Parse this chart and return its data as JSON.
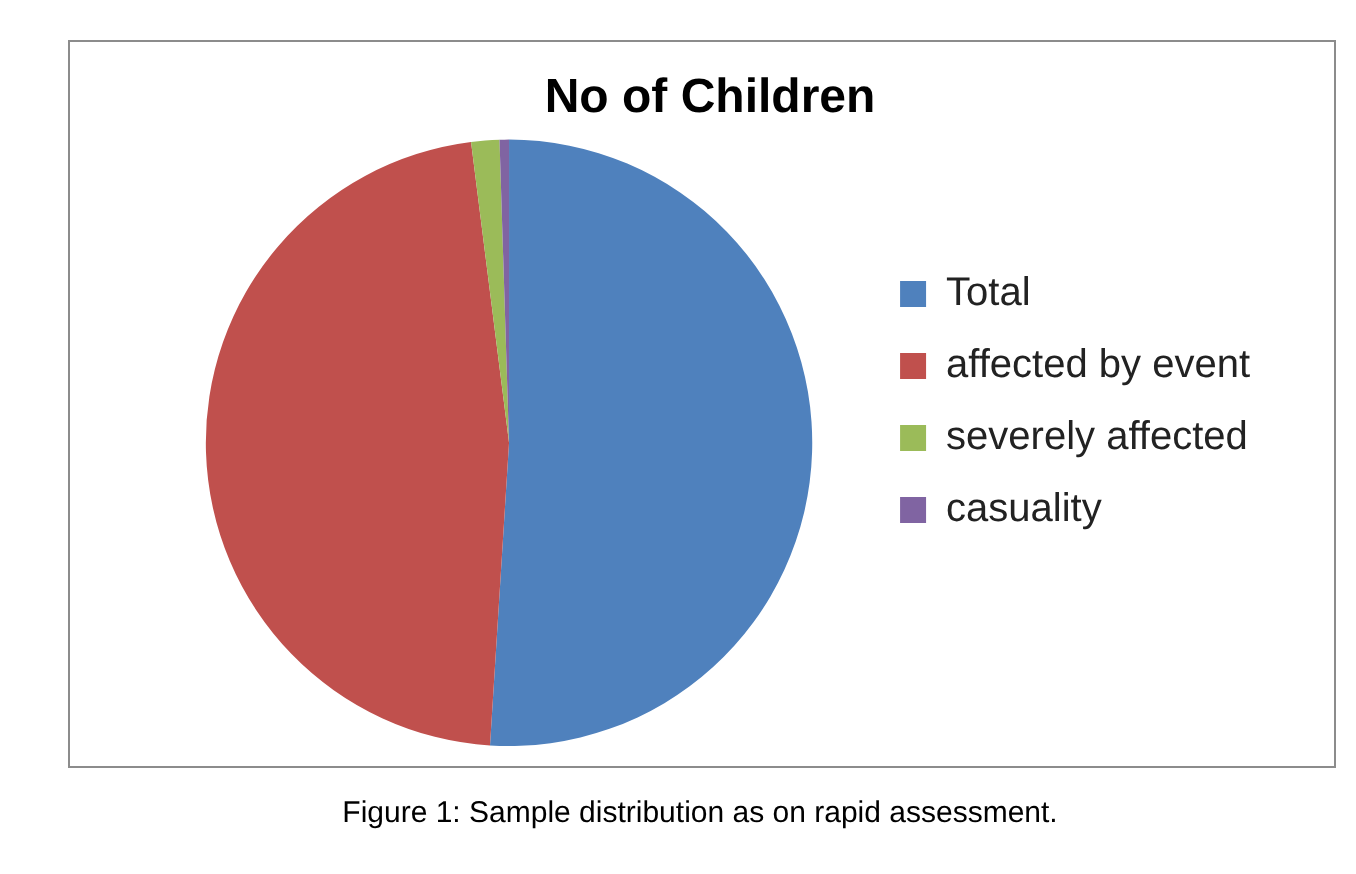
{
  "chart_data": {
    "type": "pie",
    "title": "No of Children",
    "categories": [
      "Total",
      "affected by event",
      "severely affected",
      "casuality"
    ],
    "values": [
      51,
      47,
      1.5,
      0.5
    ],
    "colors": [
      "#4f81bd",
      "#c0504d",
      "#9bbb59",
      "#8064a2"
    ],
    "legend": "right",
    "annotations": [
      "Figure 1: Sample distribution as on rapid assessment."
    ]
  }
}
